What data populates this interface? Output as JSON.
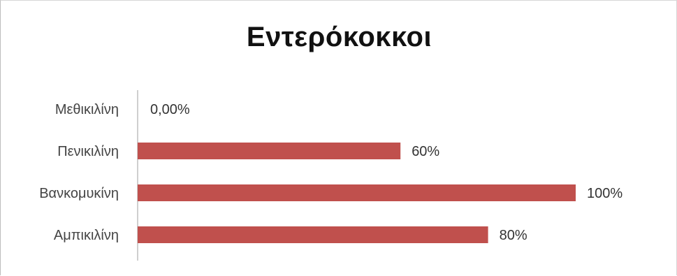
{
  "chart_data": {
    "type": "bar",
    "orientation": "horizontal",
    "title": "Εντερόκοκκοι",
    "categories": [
      "Μεθικιλίνη",
      "Πενικιλίνη",
      "Βανκομυκίνη",
      "Αμπικιλίνη"
    ],
    "values": [
      0,
      60,
      100,
      80
    ],
    "data_labels": [
      "0,00%",
      "60%",
      "100%",
      "80%"
    ],
    "xlim": [
      0,
      100
    ],
    "bar_color": "#c0504d",
    "grid": false,
    "legend": "none"
  }
}
